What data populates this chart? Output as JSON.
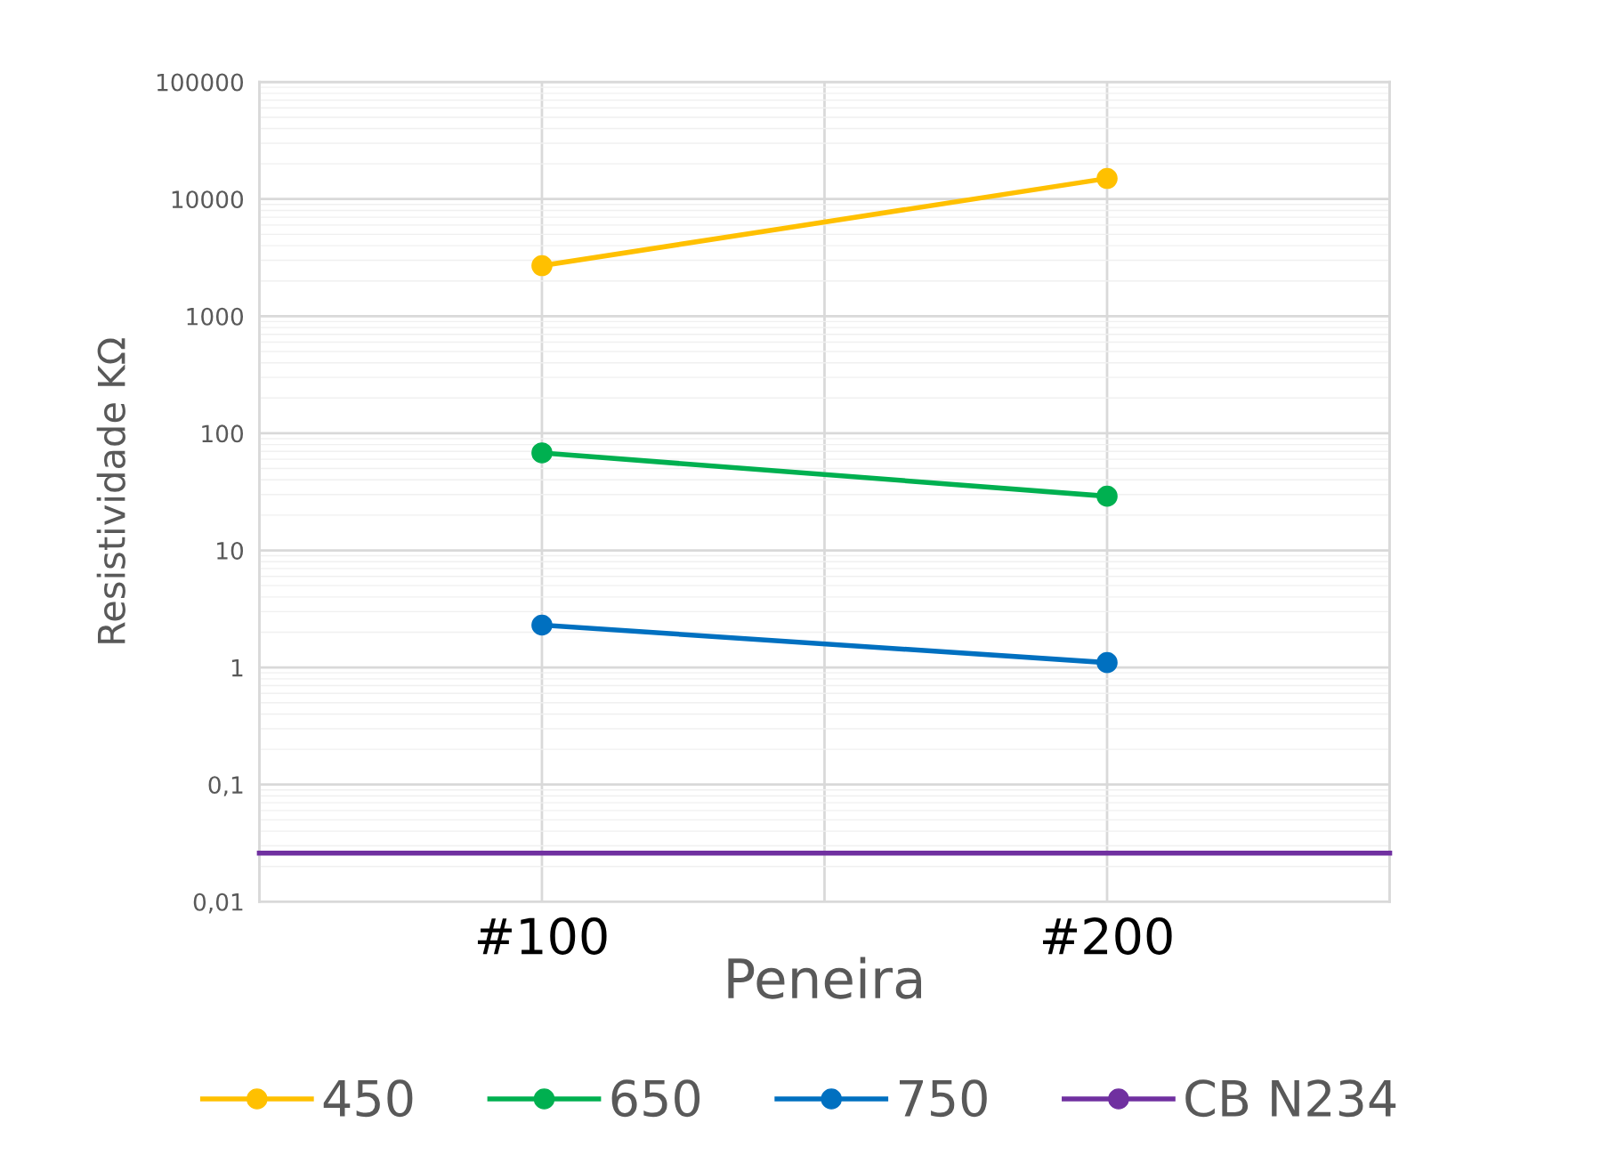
{
  "chart_data": {
    "type": "line",
    "xlabel": "Peneira",
    "ylabel": "Resistividade KΩ",
    "log": "y",
    "grid": true,
    "legend": "bottom",
    "marker": "circle",
    "line_style": "solid",
    "categories": [
      "#100",
      "#200"
    ],
    "ylim": [
      0.01,
      100000
    ],
    "yticks": [
      {
        "value": 0.01,
        "label": "0,01"
      },
      {
        "value": 0.1,
        "label": "0,1"
      },
      1,
      10,
      100,
      1000,
      10000,
      100000
    ],
    "series": [
      {
        "name": "450",
        "color": "#ffc000",
        "values": [
          2700,
          15000
        ]
      },
      {
        "name": "650",
        "color": "#00b050",
        "values": [
          68,
          29
        ]
      },
      {
        "name": "750",
        "color": "#0070c0",
        "values": [
          2.3,
          1.1
        ]
      }
    ],
    "ref_lines": [
      {
        "axis": "y",
        "value": 0.026,
        "label": "CB N234",
        "color": "#7030a0",
        "line_style": "solid"
      }
    ]
  }
}
